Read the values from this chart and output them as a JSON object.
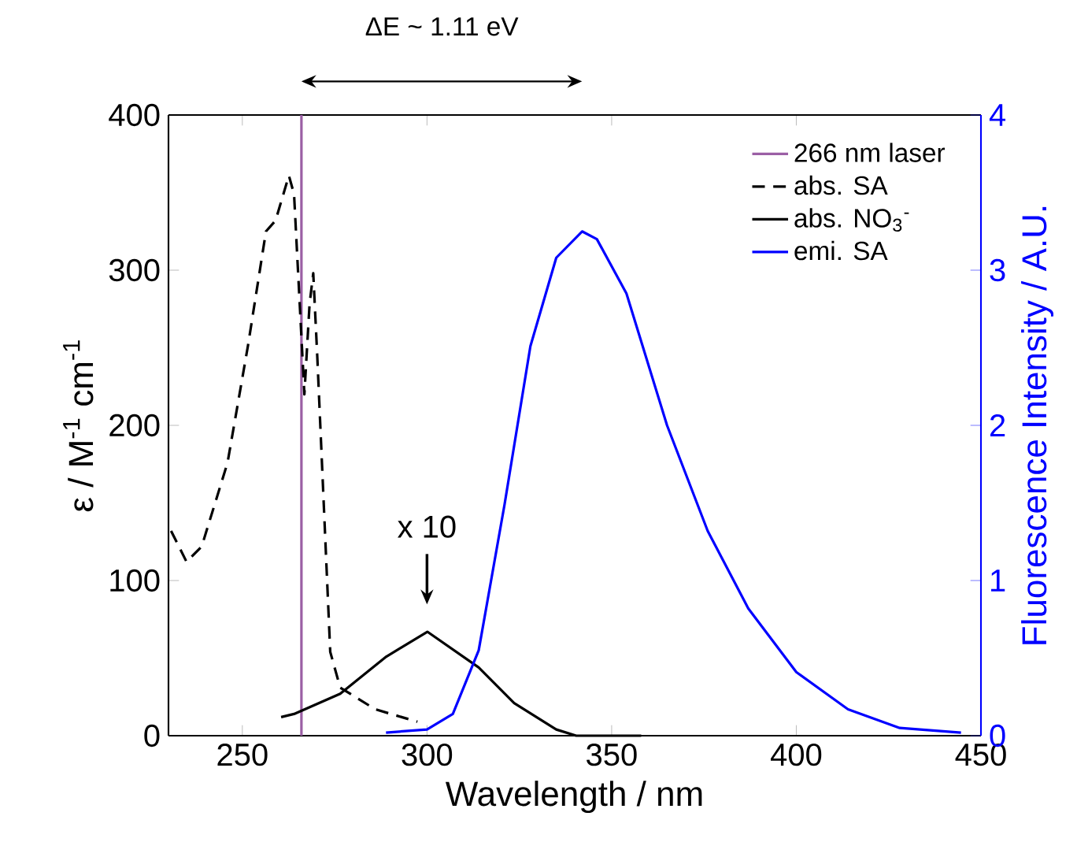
{
  "chart_data": {
    "type": "line",
    "xlabel": "Wavelength / nm",
    "ylabel": "ε / M$^{-1}$ cm$^{-1}$",
    "y2label": "Fluorescence Intensity / A.U.",
    "xlim": [
      230,
      450
    ],
    "xticks": [
      250,
      300,
      350,
      400,
      450
    ],
    "ylim": [
      0,
      400
    ],
    "yticks": [
      0,
      100,
      200,
      300,
      400
    ],
    "y2lim": [
      0,
      4
    ],
    "y2ticks": [
      0,
      1,
      2,
      3,
      4
    ],
    "legend": "top right",
    "annotations": [
      {
        "text": "x 10",
        "x": 300,
        "y": 67
      },
      "ΔE ~ 1.11 eV"
    ],
    "series": [
      {
        "name": "266 nm laser",
        "color": "#9b5fa5",
        "line_style": "solid",
        "x": [
          266,
          266
        ],
        "values": [
          0,
          400
        ]
      },
      {
        "name": "abs. SA",
        "color": "#000000",
        "line_style": "dashed",
        "x": [
          230.7,
          234.9,
          239,
          246,
          251.5,
          256.4,
          259,
          262.6,
          264,
          266.8,
          268.2,
          269.2,
          270.3,
          273.8,
          276.5,
          286,
          297.4
        ],
        "values": [
          132,
          112,
          122,
          176,
          251,
          325,
          332,
          361,
          349,
          220,
          278,
          298,
          244,
          54,
          31,
          17,
          9
        ]
      },
      {
        "name": "abs. NO$_{3}$$^{-}$",
        "color": "#000000",
        "line_style": "solid",
        "x": [
          260.5,
          264,
          276.5,
          289,
          300.1,
          314,
          323.6,
          335,
          340.4,
          358
        ],
        "values": [
          12,
          14,
          27,
          51,
          67,
          44,
          21,
          4,
          0,
          0
        ]
      },
      {
        "name": "emi. SA",
        "color": "#0000ff",
        "line_style": "solid",
        "axis": "y2",
        "x": [
          288.9,
          300,
          307,
          314,
          321,
          328,
          335,
          342,
          346,
          354,
          365,
          376,
          387,
          400,
          414,
          428,
          444.6
        ],
        "values": [
          0.02,
          0.04,
          0.14,
          0.55,
          1.49,
          2.51,
          3.08,
          3.25,
          3.2,
          2.85,
          2.0,
          1.32,
          0.82,
          0.41,
          0.17,
          0.05,
          0.02
        ]
      }
    ]
  }
}
